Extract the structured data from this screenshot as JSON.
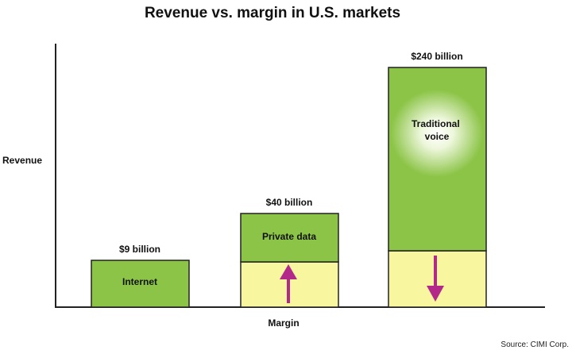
{
  "chart_data": {
    "type": "bar",
    "title": "Revenue vs. margin in U.S. markets",
    "xlabel": "Margin",
    "ylabel": "Revenue",
    "source": "Source: CIMI Corp.",
    "categories": [
      "Internet",
      "Private data",
      "Traditional voice"
    ],
    "value_labels": [
      "$9 billion",
      "$40 billion",
      "$240 billion"
    ],
    "bar_labels": [
      "Internet",
      "Private data",
      "Traditional voice"
    ],
    "margin_trend": [
      "none",
      "up",
      "down"
    ],
    "colors": {
      "green": "#8cc447",
      "green_glow": "#f4f9e6",
      "yellow": "#f9f6a0",
      "arrow": "#b2298a",
      "axis": "#222222"
    }
  }
}
